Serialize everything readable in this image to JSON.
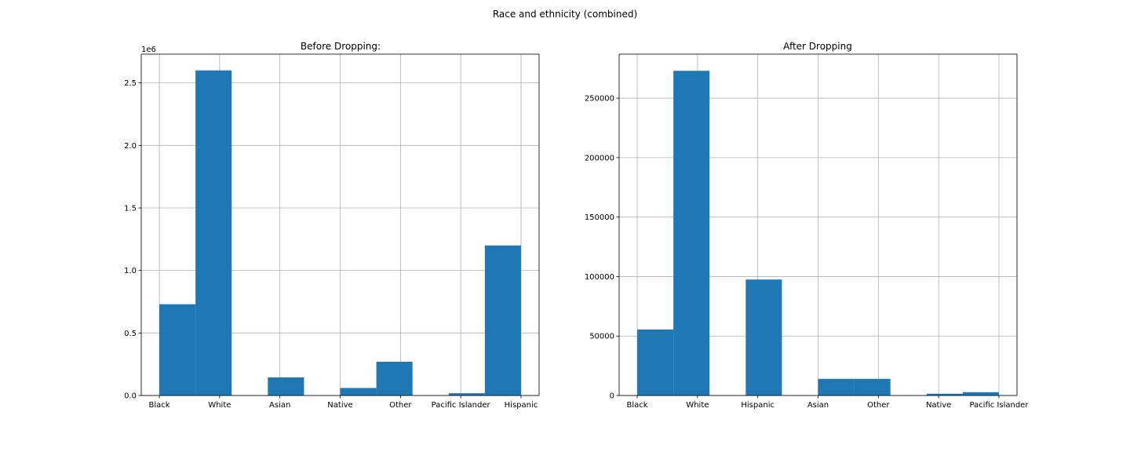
{
  "suptitle": "Race and ethnicity (combined)",
  "bar_color": "#1f77b4",
  "grid_color": "#b0b0b0",
  "chart_data": [
    {
      "type": "bar",
      "title": "Before Dropping:",
      "xlabel": "",
      "ylabel": "",
      "grid": true,
      "y_offset_label": "1e6",
      "xlim": [
        -0.3,
        6.3
      ],
      "ylim": [
        0,
        2730000
      ],
      "xticks": [
        {
          "label": "Black",
          "pos": 0
        },
        {
          "label": "White",
          "pos": 1
        },
        {
          "label": "Asian",
          "pos": 2
        },
        {
          "label": "Native",
          "pos": 3
        },
        {
          "label": "Other",
          "pos": 4
        },
        {
          "label": "Pacific Islander",
          "pos": 5
        },
        {
          "label": "Hispanic",
          "pos": 6
        }
      ],
      "yticks": [
        {
          "label": "0.0",
          "value": 0
        },
        {
          "label": "0.5",
          "value": 500000
        },
        {
          "label": "1.0",
          "value": 1000000
        },
        {
          "label": "1.5",
          "value": 1500000
        },
        {
          "label": "2.0",
          "value": 2000000
        },
        {
          "label": "2.5",
          "value": 2500000
        }
      ],
      "bins": [
        {
          "start": 0.0,
          "end": 0.6,
          "value": 730000
        },
        {
          "start": 0.6,
          "end": 1.2,
          "value": 2600000
        },
        {
          "start": 1.2,
          "end": 1.8,
          "value": 0
        },
        {
          "start": 1.8,
          "end": 2.4,
          "value": 145000
        },
        {
          "start": 2.4,
          "end": 3.0,
          "value": 0
        },
        {
          "start": 3.0,
          "end": 3.6,
          "value": 60000
        },
        {
          "start": 3.6,
          "end": 4.2,
          "value": 270000
        },
        {
          "start": 4.2,
          "end": 4.8,
          "value": 0
        },
        {
          "start": 4.8,
          "end": 5.4,
          "value": 18000
        },
        {
          "start": 5.4,
          "end": 6.0,
          "value": 1200000
        }
      ]
    },
    {
      "type": "bar",
      "title": "After Dropping",
      "xlabel": "",
      "ylabel": "",
      "grid": true,
      "y_offset_label": "",
      "xlim": [
        -0.3,
        6.3
      ],
      "ylim": [
        0,
        287000
      ],
      "xticks": [
        {
          "label": "Black",
          "pos": 0
        },
        {
          "label": "White",
          "pos": 1
        },
        {
          "label": "Hispanic",
          "pos": 2
        },
        {
          "label": "Asian",
          "pos": 3
        },
        {
          "label": "Other",
          "pos": 4
        },
        {
          "label": "Native",
          "pos": 5
        },
        {
          "label": "Pacific Islander",
          "pos": 6
        }
      ],
      "yticks": [
        {
          "label": "0",
          "value": 0
        },
        {
          "label": "50000",
          "value": 50000
        },
        {
          "label": "100000",
          "value": 100000
        },
        {
          "label": "150000",
          "value": 150000
        },
        {
          "label": "200000",
          "value": 200000
        },
        {
          "label": "250000",
          "value": 250000
        }
      ],
      "bins": [
        {
          "start": 0.0,
          "end": 0.6,
          "value": 55500
        },
        {
          "start": 0.6,
          "end": 1.2,
          "value": 273000
        },
        {
          "start": 1.2,
          "end": 1.8,
          "value": 0
        },
        {
          "start": 1.8,
          "end": 2.4,
          "value": 97500
        },
        {
          "start": 2.4,
          "end": 3.0,
          "value": 0
        },
        {
          "start": 3.0,
          "end": 3.6,
          "value": 14000
        },
        {
          "start": 3.6,
          "end": 4.2,
          "value": 14000
        },
        {
          "start": 4.2,
          "end": 4.8,
          "value": 0
        },
        {
          "start": 4.8,
          "end": 5.4,
          "value": 1500
        },
        {
          "start": 5.4,
          "end": 6.0,
          "value": 2800
        }
      ]
    }
  ]
}
